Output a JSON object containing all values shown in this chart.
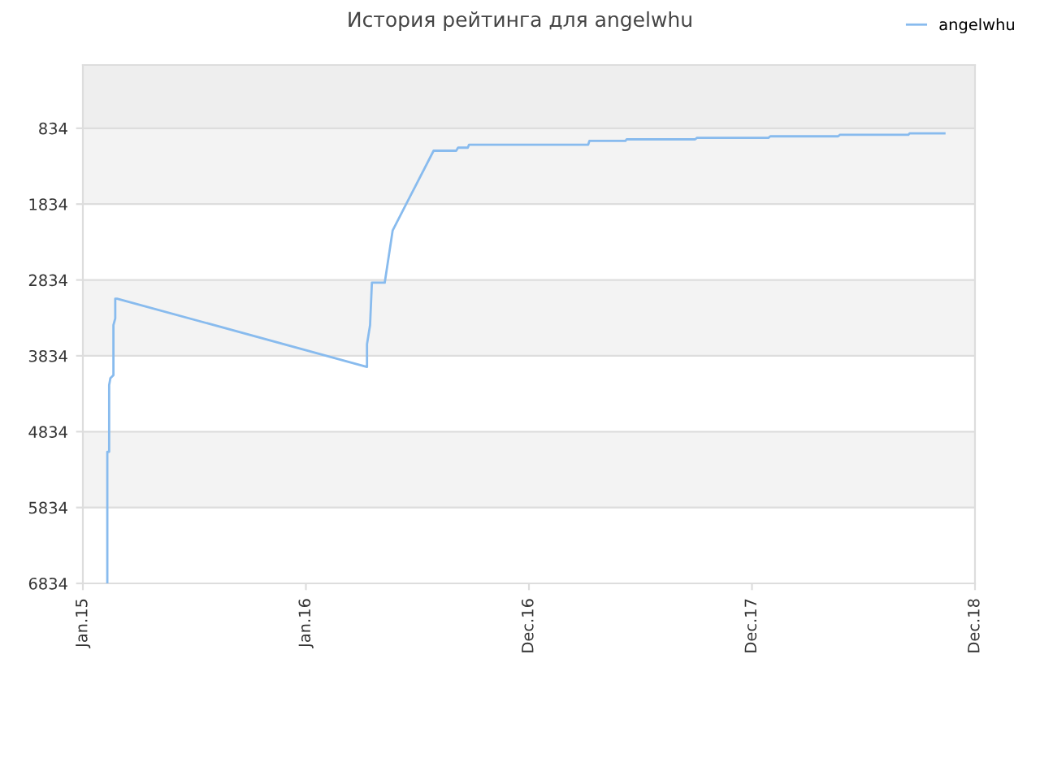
{
  "chart_data": {
    "type": "line",
    "title": "История рейтинга для angelwhu",
    "series": [
      {
        "name": "angelwhu",
        "color": "#88bbee",
        "x": [
          "2015-02-10",
          "2015-02-10",
          "2015-02-13",
          "2015-02-13",
          "2015-02-15",
          "2015-02-20",
          "2015-02-20",
          "2015-02-23",
          "2015-02-23",
          "2015-02-26",
          "2016-04-10",
          "2016-04-10",
          "2016-04-15",
          "2016-04-18",
          "2016-05-09",
          "2016-05-22",
          "2016-07-28",
          "2016-09-03",
          "2016-09-06",
          "2016-09-22",
          "2016-09-24",
          "2017-04-07",
          "2017-04-09",
          "2017-06-07",
          "2017-06-09",
          "2017-09-29",
          "2017-10-02",
          "2018-01-27",
          "2018-01-30",
          "2018-05-21",
          "2018-05-24",
          "2018-09-13",
          "2018-09-15",
          "2018-11-11"
        ],
        "values": [
          6834,
          5100,
          5100,
          4220,
          4130,
          4090,
          3430,
          3340,
          3080,
          3080,
          3980,
          3680,
          3430,
          2870,
          2870,
          2180,
          1130,
          1130,
          1090,
          1090,
          1050,
          1050,
          1000,
          1000,
          980,
          980,
          960,
          960,
          940,
          940,
          920,
          920,
          900,
          900
        ]
      }
    ],
    "xlim": [
      "2015-01-01",
      "2018-12-31"
    ],
    "xticks": [
      {
        "value": "2015-01-01",
        "label": "Jan.15"
      },
      {
        "value": "2016-01-01",
        "label": "Jan.16"
      },
      {
        "value": "2016-12-31",
        "label": "Dec.16"
      },
      {
        "value": "2017-12-31",
        "label": "Dec.17"
      },
      {
        "value": "2018-12-31",
        "label": "Dec.18"
      }
    ],
    "ylim": [
      6834,
      0
    ],
    "yticks": [
      834,
      1834,
      2834,
      3834,
      4834,
      5834,
      6834
    ],
    "bands": [
      {
        "axis": "y",
        "from": 0,
        "to": 834,
        "color": "#eeeeee"
      },
      {
        "axis": "y",
        "from": 834,
        "to": 1834,
        "color": "#f3f3f3"
      },
      {
        "axis": "y",
        "from": 2834,
        "to": 3834,
        "color": "#f3f3f3"
      },
      {
        "axis": "y",
        "from": 4834,
        "to": 5834,
        "color": "#f3f3f3"
      }
    ],
    "grid": "y",
    "legend": "top right"
  }
}
